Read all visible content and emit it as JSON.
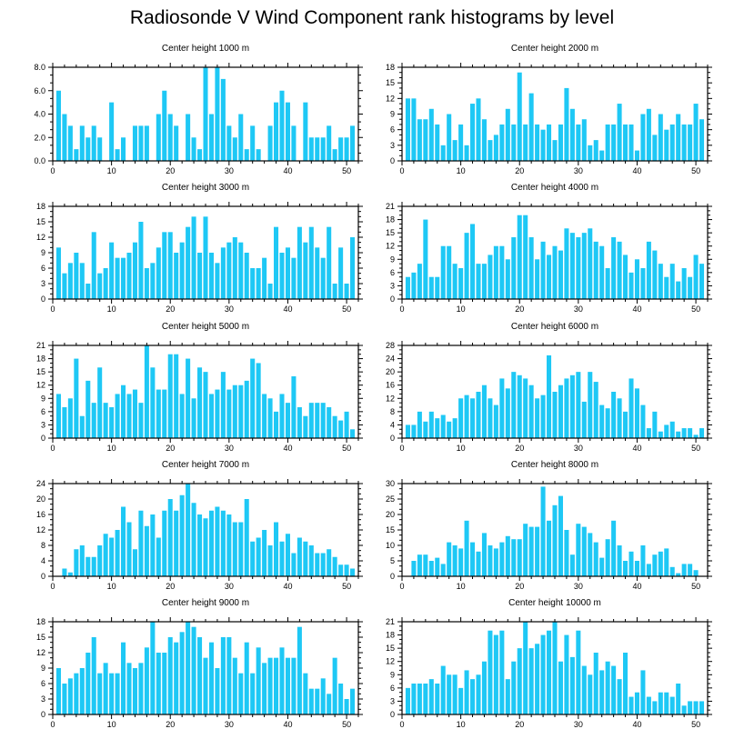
{
  "title": "Radiosonde V Wind Component rank histograms by level",
  "colors": {
    "bar": "#1ec8f5",
    "axis": "#000000",
    "background": "#ffffff"
  },
  "chart_data": [
    {
      "type": "bar",
      "title": "Center height 1000 m",
      "x": [
        1,
        2,
        3,
        4,
        5,
        6,
        7,
        8,
        9,
        10,
        11,
        12,
        13,
        14,
        15,
        16,
        17,
        18,
        19,
        20,
        21,
        22,
        23,
        24,
        25,
        26,
        27,
        28,
        29,
        30,
        31,
        32,
        33,
        34,
        35,
        36,
        37,
        38,
        39,
        40,
        41,
        42,
        43,
        44,
        45,
        46,
        47,
        48,
        49,
        50,
        51
      ],
      "values": [
        6,
        4,
        3,
        1,
        3,
        2,
        3,
        2,
        0,
        5,
        1,
        2,
        0,
        3,
        3,
        3,
        0,
        4,
        6,
        4,
        3,
        0,
        4,
        2,
        1,
        8,
        4,
        8,
        7,
        3,
        2,
        4,
        1,
        3,
        1,
        0,
        3,
        5,
        6,
        5,
        3,
        0,
        5,
        2,
        2,
        2,
        3,
        1,
        2,
        2,
        3
      ],
      "xlim": [
        0,
        52
      ],
      "ylim": [
        0,
        8
      ],
      "yticks": [
        "0.0",
        "2.0",
        "4.0",
        "6.0",
        "8.0"
      ],
      "ytick_values": [
        0,
        2,
        4,
        6,
        8
      ],
      "xticks": [
        "0",
        "10",
        "20",
        "30",
        "40",
        "50"
      ],
      "xtick_values": [
        0,
        10,
        20,
        30,
        40,
        50
      ]
    },
    {
      "type": "bar",
      "title": "Center height 2000 m",
      "x": [
        1,
        2,
        3,
        4,
        5,
        6,
        7,
        8,
        9,
        10,
        11,
        12,
        13,
        14,
        15,
        16,
        17,
        18,
        19,
        20,
        21,
        22,
        23,
        24,
        25,
        26,
        27,
        28,
        29,
        30,
        31,
        32,
        33,
        34,
        35,
        36,
        37,
        38,
        39,
        40,
        41,
        42,
        43,
        44,
        45,
        46,
        47,
        48,
        49,
        50,
        51
      ],
      "values": [
        12,
        12,
        8,
        8,
        10,
        7,
        3,
        9,
        4,
        7,
        3,
        11,
        12,
        8,
        4,
        5,
        7,
        10,
        7,
        17,
        7,
        13,
        7,
        6,
        7,
        4,
        7,
        14,
        10,
        7,
        8,
        3,
        4,
        2,
        7,
        7,
        11,
        7,
        7,
        2,
        9,
        10,
        5,
        9,
        6,
        7,
        9,
        7,
        7,
        11,
        8
      ],
      "xlim": [
        0,
        52
      ],
      "ylim": [
        0,
        18
      ],
      "yticks": [
        "0",
        "3",
        "6",
        "9",
        "12",
        "15",
        "18"
      ],
      "ytick_values": [
        0,
        3,
        6,
        9,
        12,
        15,
        18
      ],
      "xticks": [
        "0",
        "10",
        "20",
        "30",
        "40",
        "50"
      ],
      "xtick_values": [
        0,
        10,
        20,
        30,
        40,
        50
      ]
    },
    {
      "type": "bar",
      "title": "Center height 3000 m",
      "x": [
        1,
        2,
        3,
        4,
        5,
        6,
        7,
        8,
        9,
        10,
        11,
        12,
        13,
        14,
        15,
        16,
        17,
        18,
        19,
        20,
        21,
        22,
        23,
        24,
        25,
        26,
        27,
        28,
        29,
        30,
        31,
        32,
        33,
        34,
        35,
        36,
        37,
        38,
        39,
        40,
        41,
        42,
        43,
        44,
        45,
        46,
        47,
        48,
        49,
        50,
        51
      ],
      "values": [
        10,
        5,
        7,
        9,
        7,
        3,
        13,
        5,
        6,
        11,
        8,
        8,
        9,
        11,
        15,
        6,
        7,
        10,
        13,
        13,
        9,
        11,
        14,
        16,
        9,
        16,
        9,
        7,
        10,
        11,
        12,
        11,
        9,
        6,
        6,
        8,
        3,
        14,
        9,
        10,
        8,
        14,
        11,
        14,
        10,
        8,
        14,
        3,
        10,
        3,
        12
      ],
      "xlim": [
        0,
        52
      ],
      "ylim": [
        0,
        18
      ],
      "yticks": [
        "0",
        "3",
        "6",
        "9",
        "12",
        "15",
        "18"
      ],
      "ytick_values": [
        0,
        3,
        6,
        9,
        12,
        15,
        18
      ],
      "xticks": [
        "0",
        "10",
        "20",
        "30",
        "40",
        "50"
      ],
      "xtick_values": [
        0,
        10,
        20,
        30,
        40,
        50
      ]
    },
    {
      "type": "bar",
      "title": "Center height 4000 m",
      "x": [
        1,
        2,
        3,
        4,
        5,
        6,
        7,
        8,
        9,
        10,
        11,
        12,
        13,
        14,
        15,
        16,
        17,
        18,
        19,
        20,
        21,
        22,
        23,
        24,
        25,
        26,
        27,
        28,
        29,
        30,
        31,
        32,
        33,
        34,
        35,
        36,
        37,
        38,
        39,
        40,
        41,
        42,
        43,
        44,
        45,
        46,
        47,
        48,
        49,
        50,
        51
      ],
      "values": [
        5,
        6,
        8,
        18,
        5,
        5,
        12,
        12,
        8,
        7,
        15,
        17,
        8,
        8,
        10,
        12,
        12,
        9,
        14,
        19,
        19,
        14,
        9,
        13,
        10,
        12,
        11,
        16,
        15,
        14,
        15,
        16,
        13,
        12,
        7,
        14,
        13,
        10,
        6,
        9,
        7,
        13,
        11,
        8,
        5,
        8,
        4,
        7,
        5,
        10,
        8
      ],
      "xlim": [
        0,
        52
      ],
      "ylim": [
        0,
        21
      ],
      "yticks": [
        "0",
        "3",
        "6",
        "9",
        "12",
        "15",
        "18",
        "21"
      ],
      "ytick_values": [
        0,
        3,
        6,
        9,
        12,
        15,
        18,
        21
      ],
      "xticks": [
        "0",
        "10",
        "20",
        "30",
        "40",
        "50"
      ],
      "xtick_values": [
        0,
        10,
        20,
        30,
        40,
        50
      ]
    },
    {
      "type": "bar",
      "title": "Center height 5000 m",
      "x": [
        1,
        2,
        3,
        4,
        5,
        6,
        7,
        8,
        9,
        10,
        11,
        12,
        13,
        14,
        15,
        16,
        17,
        18,
        19,
        20,
        21,
        22,
        23,
        24,
        25,
        26,
        27,
        28,
        29,
        30,
        31,
        32,
        33,
        34,
        35,
        36,
        37,
        38,
        39,
        40,
        41,
        42,
        43,
        44,
        45,
        46,
        47,
        48,
        49,
        50,
        51
      ],
      "values": [
        10,
        7,
        9,
        18,
        5,
        13,
        8,
        16,
        8,
        7,
        10,
        12,
        10,
        11,
        8,
        21,
        16,
        11,
        11,
        19,
        19,
        10,
        18,
        9,
        16,
        15,
        10,
        11,
        15,
        11,
        12,
        12,
        13,
        18,
        17,
        10,
        9,
        6,
        10,
        8,
        14,
        7,
        5,
        8,
        8,
        8,
        7,
        5,
        4,
        6,
        2
      ],
      "xlim": [
        0,
        52
      ],
      "ylim": [
        0,
        21
      ],
      "yticks": [
        "0",
        "3",
        "6",
        "9",
        "12",
        "15",
        "18",
        "21"
      ],
      "ytick_values": [
        0,
        3,
        6,
        9,
        12,
        15,
        18,
        21
      ],
      "xticks": [
        "0",
        "10",
        "20",
        "30",
        "40",
        "50"
      ],
      "xtick_values": [
        0,
        10,
        20,
        30,
        40,
        50
      ]
    },
    {
      "type": "bar",
      "title": "Center height 6000 m",
      "x": [
        1,
        2,
        3,
        4,
        5,
        6,
        7,
        8,
        9,
        10,
        11,
        12,
        13,
        14,
        15,
        16,
        17,
        18,
        19,
        20,
        21,
        22,
        23,
        24,
        25,
        26,
        27,
        28,
        29,
        30,
        31,
        32,
        33,
        34,
        35,
        36,
        37,
        38,
        39,
        40,
        41,
        42,
        43,
        44,
        45,
        46,
        47,
        48,
        49,
        50,
        51
      ],
      "values": [
        4,
        4,
        8,
        5,
        8,
        6,
        7,
        5,
        6,
        12,
        13,
        12,
        14,
        16,
        12,
        10,
        18,
        15,
        20,
        19,
        18,
        16,
        12,
        13,
        25,
        14,
        16,
        18,
        19,
        20,
        11,
        20,
        17,
        10,
        9,
        14,
        12,
        8,
        18,
        15,
        10,
        3,
        8,
        2,
        4,
        5,
        2,
        3,
        3,
        1,
        3
      ],
      "xlim": [
        0,
        52
      ],
      "ylim": [
        0,
        28
      ],
      "yticks": [
        "0",
        "4",
        "8",
        "12",
        "16",
        "20",
        "24",
        "28"
      ],
      "ytick_values": [
        0,
        4,
        8,
        12,
        16,
        20,
        24,
        28
      ],
      "xticks": [
        "0",
        "10",
        "20",
        "30",
        "40",
        "50"
      ],
      "xtick_values": [
        0,
        10,
        20,
        30,
        40,
        50
      ]
    },
    {
      "type": "bar",
      "title": "Center height 7000 m",
      "x": [
        1,
        2,
        3,
        4,
        5,
        6,
        7,
        8,
        9,
        10,
        11,
        12,
        13,
        14,
        15,
        16,
        17,
        18,
        19,
        20,
        21,
        22,
        23,
        24,
        25,
        26,
        27,
        28,
        29,
        30,
        31,
        32,
        33,
        34,
        35,
        36,
        37,
        38,
        39,
        40,
        41,
        42,
        43,
        44,
        45,
        46,
        47,
        48,
        49,
        50,
        51
      ],
      "values": [
        0,
        2,
        1,
        7,
        8,
        5,
        5,
        8,
        11,
        10,
        12,
        18,
        14,
        7,
        17,
        13,
        16,
        10,
        17,
        20,
        17,
        21,
        24,
        19,
        16,
        15,
        17,
        18,
        17,
        16,
        14,
        14,
        20,
        9,
        10,
        12,
        8,
        14,
        9,
        11,
        6,
        10,
        9,
        8,
        6,
        6,
        7,
        5,
        3,
        3,
        2
      ],
      "xlim": [
        0,
        52
      ],
      "ylim": [
        0,
        24
      ],
      "yticks": [
        "0",
        "4",
        "8",
        "12",
        "16",
        "20",
        "24"
      ],
      "ytick_values": [
        0,
        4,
        8,
        12,
        16,
        20,
        24
      ],
      "xticks": [
        "0",
        "10",
        "20",
        "30",
        "40",
        "50"
      ],
      "xtick_values": [
        0,
        10,
        20,
        30,
        40,
        50
      ]
    },
    {
      "type": "bar",
      "title": "Center height 8000 m",
      "x": [
        1,
        2,
        3,
        4,
        5,
        6,
        7,
        8,
        9,
        10,
        11,
        12,
        13,
        14,
        15,
        16,
        17,
        18,
        19,
        20,
        21,
        22,
        23,
        24,
        25,
        26,
        27,
        28,
        29,
        30,
        31,
        32,
        33,
        34,
        35,
        36,
        37,
        38,
        39,
        40,
        41,
        42,
        43,
        44,
        45,
        46,
        47,
        48,
        49,
        50,
        51
      ],
      "values": [
        0,
        5,
        7,
        7,
        5,
        6,
        4,
        11,
        10,
        9,
        18,
        11,
        8,
        14,
        10,
        9,
        11,
        13,
        12,
        12,
        17,
        16,
        16,
        29,
        18,
        23,
        26,
        15,
        7,
        17,
        16,
        14,
        11,
        6,
        12,
        18,
        10,
        5,
        8,
        5,
        10,
        4,
        7,
        8,
        9,
        3,
        1,
        4,
        4,
        2,
        0
      ],
      "xlim": [
        0,
        52
      ],
      "ylim": [
        0,
        30
      ],
      "yticks": [
        "0",
        "5",
        "10",
        "15",
        "20",
        "25",
        "30"
      ],
      "ytick_values": [
        0,
        5,
        10,
        15,
        20,
        25,
        30
      ],
      "xticks": [
        "0",
        "10",
        "20",
        "30",
        "40",
        "50"
      ],
      "xtick_values": [
        0,
        10,
        20,
        30,
        40,
        50
      ]
    },
    {
      "type": "bar",
      "title": "Center height 9000 m",
      "x": [
        1,
        2,
        3,
        4,
        5,
        6,
        7,
        8,
        9,
        10,
        11,
        12,
        13,
        14,
        15,
        16,
        17,
        18,
        19,
        20,
        21,
        22,
        23,
        24,
        25,
        26,
        27,
        28,
        29,
        30,
        31,
        32,
        33,
        34,
        35,
        36,
        37,
        38,
        39,
        40,
        41,
        42,
        43,
        44,
        45,
        46,
        47,
        48,
        49,
        50,
        51
      ],
      "values": [
        9,
        6,
        7,
        8,
        9,
        12,
        15,
        8,
        10,
        8,
        8,
        14,
        10,
        9,
        10,
        13,
        18,
        12,
        12,
        15,
        14,
        16,
        18,
        17,
        15,
        11,
        14,
        9,
        15,
        15,
        11,
        8,
        14,
        8,
        13,
        10,
        11,
        11,
        13,
        11,
        11,
        17,
        8,
        5,
        5,
        7,
        4,
        11,
        6,
        3,
        5
      ],
      "xlim": [
        0,
        52
      ],
      "ylim": [
        0,
        18
      ],
      "yticks": [
        "0",
        "3",
        "6",
        "9",
        "12",
        "15",
        "18"
      ],
      "ytick_values": [
        0,
        3,
        6,
        9,
        12,
        15,
        18
      ],
      "xticks": [
        "0",
        "10",
        "20",
        "30",
        "40",
        "50"
      ],
      "xtick_values": [
        0,
        10,
        20,
        30,
        40,
        50
      ]
    },
    {
      "type": "bar",
      "title": "Center height 10000 m",
      "x": [
        1,
        2,
        3,
        4,
        5,
        6,
        7,
        8,
        9,
        10,
        11,
        12,
        13,
        14,
        15,
        16,
        17,
        18,
        19,
        20,
        21,
        22,
        23,
        24,
        25,
        26,
        27,
        28,
        29,
        30,
        31,
        32,
        33,
        34,
        35,
        36,
        37,
        38,
        39,
        40,
        41,
        42,
        43,
        44,
        45,
        46,
        47,
        48,
        49,
        50,
        51
      ],
      "values": [
        6,
        7,
        7,
        7,
        8,
        7,
        11,
        9,
        9,
        6,
        10,
        8,
        9,
        12,
        19,
        18,
        19,
        8,
        12,
        15,
        21,
        15,
        16,
        18,
        19,
        21,
        12,
        18,
        13,
        19,
        11,
        9,
        14,
        10,
        12,
        11,
        8,
        14,
        4,
        5,
        10,
        4,
        3,
        5,
        5,
        4,
        7,
        2,
        3,
        3,
        3
      ],
      "xlim": [
        0,
        52
      ],
      "ylim": [
        0,
        21
      ],
      "yticks": [
        "0",
        "3",
        "6",
        "9",
        "12",
        "15",
        "18",
        "21"
      ],
      "ytick_values": [
        0,
        3,
        6,
        9,
        12,
        15,
        18,
        21
      ],
      "xticks": [
        "0",
        "10",
        "20",
        "30",
        "40",
        "50"
      ],
      "xtick_values": [
        0,
        10,
        20,
        30,
        40,
        50
      ]
    }
  ]
}
